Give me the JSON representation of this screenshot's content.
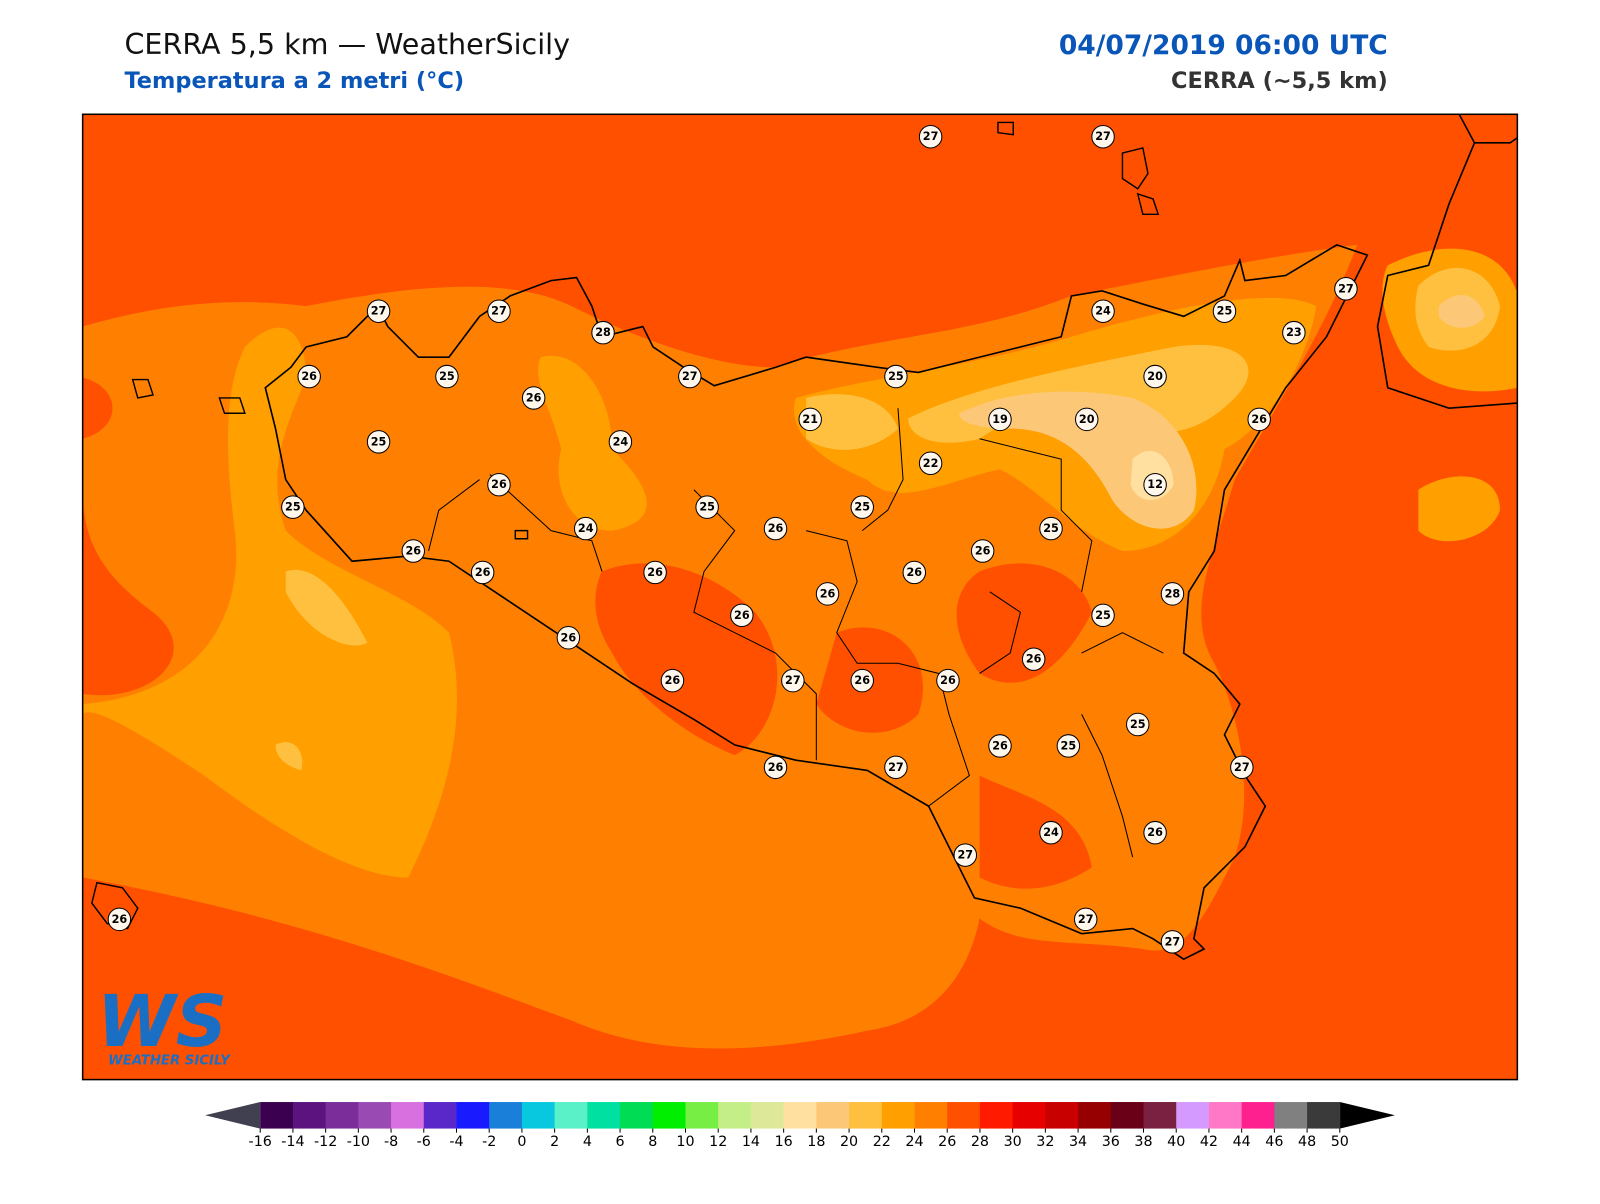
{
  "header": {
    "title": "CERRA 5,5 km — WeatherSicily",
    "subtitle": "Temperatura a 2 metri (°C)",
    "datetime": "04/07/2019 06:00 UTC",
    "model": "CERRA (~5,5 km)"
  },
  "logo": {
    "mark": "WS",
    "name": "WEATHER SICILY"
  },
  "stations": [
    27,
    27,
    27,
    27,
    28,
    24,
    25,
    27,
    23,
    26,
    25,
    26,
    27,
    25,
    20,
    21,
    19,
    20,
    26,
    25,
    24,
    22,
    26,
    12,
    25,
    25,
    25,
    24,
    26,
    25,
    26,
    26,
    26,
    26,
    26,
    26,
    28,
    26,
    25,
    26,
    26,
    26,
    27,
    26,
    26,
    25,
    26,
    25,
    26,
    27,
    27,
    27,
    24,
    26,
    27,
    27,
    26
  ],
  "colorbar": {
    "ticks": [
      -16,
      -14,
      -12,
      -10,
      -8,
      -6,
      -4,
      -2,
      0,
      2,
      4,
      6,
      8,
      10,
      12,
      14,
      16,
      18,
      20,
      22,
      24,
      26,
      28,
      30,
      32,
      34,
      36,
      38,
      40,
      42,
      44,
      46,
      48,
      50
    ],
    "colors": [
      "#3b0050",
      "#5c1380",
      "#7b2e9a",
      "#9a4bb3",
      "#d870e0",
      "#5a28c8",
      "#1a1aff",
      "#1a7fd8",
      "#08c8e0",
      "#5af0c8",
      "#00e0a0",
      "#00dd55",
      "#00ee00",
      "#77ee44",
      "#c4ee88",
      "#dde899",
      "#ffe0a0",
      "#fcc878",
      "#ffc040",
      "#ff9f00",
      "#ff8000",
      "#ff5000",
      "#ff1a00",
      "#e60000",
      "#c80000",
      "#960000",
      "#6a0018",
      "#7a2040",
      "#d49aff",
      "#ff78c8",
      "#ff2090",
      "#808080",
      "#3a3a3a"
    ],
    "under": "#404050",
    "over": "#000000"
  }
}
